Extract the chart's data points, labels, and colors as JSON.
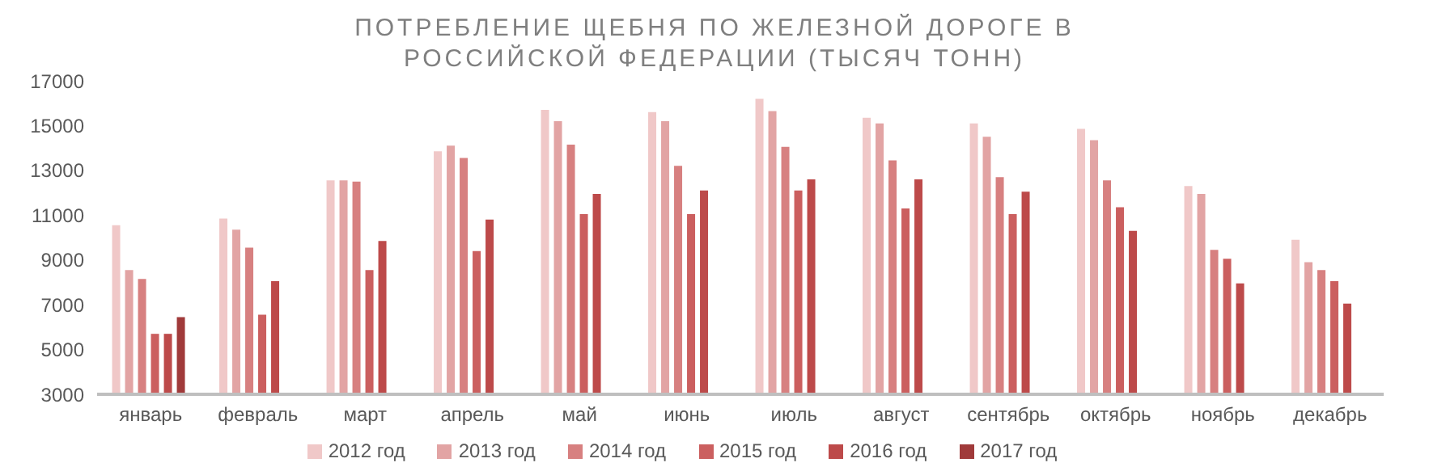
{
  "chart_data": {
    "type": "bar",
    "title": "ПОТРЕБЛЕНИЕ ЩЕБНЯ ПО ЖЕЛЕЗНОЙ ДОРОГЕ В РОССИЙСКОЙ ФЕДЕРАЦИИ (ТЫСЯЧ ТОНН)",
    "categories": [
      "январь",
      "февраль",
      "март",
      "апрель",
      "май",
      "июнь",
      "июль",
      "август",
      "сентябрь",
      "октябрь",
      "ноябрь",
      "декабрь"
    ],
    "series": [
      {
        "name": "2012 год",
        "color": "#f0c8c8",
        "values": [
          10550,
          10850,
          12550,
          13850,
          15700,
          15600,
          16200,
          15350,
          15100,
          14850,
          12300,
          9900
        ]
      },
      {
        "name": "2013 год",
        "color": "#e2a4a4",
        "values": [
          8550,
          10350,
          12550,
          14100,
          15200,
          15200,
          15650,
          15100,
          14500,
          14350,
          11950,
          8900
        ]
      },
      {
        "name": "2014 год",
        "color": "#d78080",
        "values": [
          8150,
          9550,
          12500,
          13550,
          14150,
          13200,
          14050,
          13450,
          12700,
          12550,
          9450,
          8550
        ]
      },
      {
        "name": "2015 год",
        "color": "#cb5f5f",
        "values": [
          5700,
          6550,
          8550,
          9400,
          11050,
          11050,
          12100,
          11300,
          11050,
          11350,
          9050,
          8050
        ]
      },
      {
        "name": "2016 год",
        "color": "#bd4a4a",
        "values": [
          5700,
          8050,
          9850,
          10800,
          11950,
          12100,
          12600,
          12600,
          12050,
          10300,
          7950,
          7050
        ]
      },
      {
        "name": "2017 год",
        "color": "#a03a3a",
        "values": [
          6450,
          null,
          null,
          null,
          null,
          null,
          null,
          null,
          null,
          null,
          null,
          null
        ]
      }
    ],
    "ylim": [
      3000,
      17000
    ],
    "yticks": [
      3000,
      5000,
      7000,
      9000,
      11000,
      13000,
      15000,
      17000
    ],
    "grid": false,
    "legend": "bottom"
  }
}
